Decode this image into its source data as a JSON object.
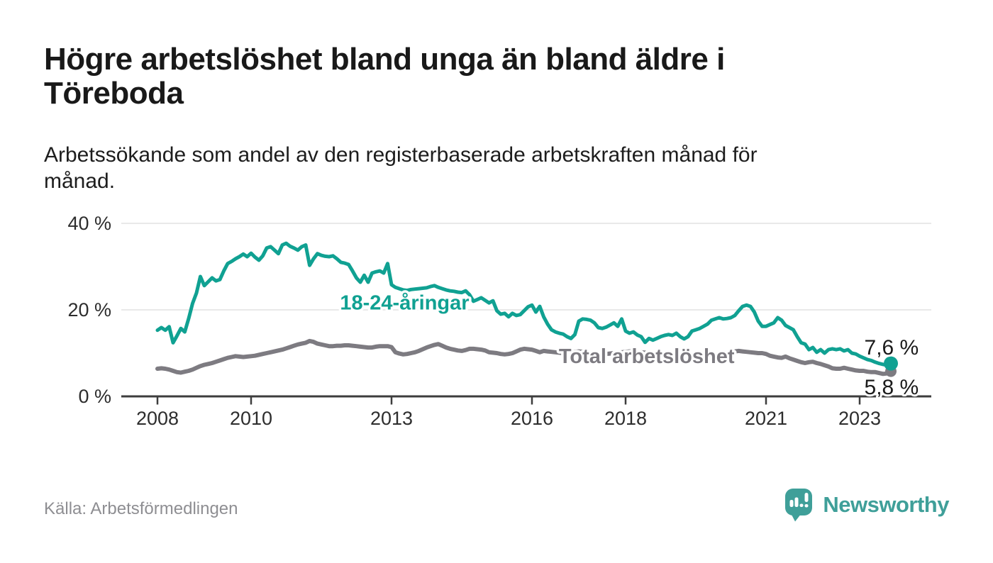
{
  "header": {
    "title": "Högre arbetslöshet bland unga än bland äldre i\nTöreboda",
    "subtitle": "Arbetssökande som andel av den registerbaserade arbetskraften månad för\nmånad."
  },
  "footer": {
    "source": "Källa: Arbetsförmedlingen",
    "brand": "Newsworthy"
  },
  "colors": {
    "young_series": "#10a192",
    "total_series": "#7d7b81",
    "gridline": "#e2e2e2",
    "axis": "#3d3d3d",
    "logo_teal": "#3f9f99"
  },
  "chart_data": {
    "type": "line",
    "title": "Högre arbetslöshet bland unga än bland äldre i Töreboda",
    "subtitle": "Arbetssökande som andel av den registerbaserade arbetskraften månad för månad.",
    "source_label": "Källa: Arbetsförmedlingen",
    "x_unit": "month",
    "start": "2008-01",
    "end": "2023-09",
    "ylim": [
      0,
      40
    ],
    "grid": "horizontal",
    "legend_position": "inline-labels",
    "y_ticks": [
      {
        "value": 40,
        "label": "40 %"
      },
      {
        "value": 20,
        "label": "20 %"
      },
      {
        "value": 0,
        "label": "0 %"
      }
    ],
    "x_ticks": [
      {
        "year": 2008,
        "label": "2008"
      },
      {
        "year": 2010,
        "label": "2010"
      },
      {
        "year": 2013,
        "label": "2013"
      },
      {
        "year": 2016,
        "label": "2016"
      },
      {
        "year": 2018,
        "label": "2018"
      },
      {
        "year": 2021,
        "label": "2021"
      },
      {
        "year": 2023,
        "label": "2023"
      }
    ],
    "series": [
      {
        "name": "Total arbetslöshet",
        "color": "#7d7b81",
        "line_width": 6,
        "start_year": 2008,
        "end_dot_radius": 8,
        "inline_label": {
          "text": "Total arbetslöshet",
          "year": 2018.45,
          "pct": 9.35
        },
        "end_label": {
          "text": "5,8 %",
          "year": 2023.68,
          "pct": 2.1
        },
        "values": [
          6.4,
          6.5,
          6.4,
          6.2,
          5.9,
          5.6,
          5.5,
          5.7,
          5.9,
          6.2,
          6.6,
          7.0,
          7.3,
          7.5,
          7.7,
          8.0,
          8.3,
          8.6,
          8.9,
          9.1,
          9.3,
          9.2,
          9.1,
          9.2,
          9.3,
          9.4,
          9.6,
          9.8,
          10.0,
          10.2,
          10.4,
          10.6,
          10.8,
          11.1,
          11.4,
          11.7,
          12.0,
          12.2,
          12.4,
          12.8,
          12.6,
          12.2,
          12.0,
          11.8,
          11.6,
          11.6,
          11.7,
          11.7,
          11.8,
          11.8,
          11.7,
          11.6,
          11.5,
          11.4,
          11.3,
          11.3,
          11.5,
          11.6,
          11.6,
          11.6,
          11.4,
          10.2,
          9.9,
          9.7,
          9.8,
          10.0,
          10.2,
          10.5,
          10.9,
          11.3,
          11.6,
          11.9,
          12.1,
          11.7,
          11.3,
          11.0,
          10.8,
          10.6,
          10.5,
          10.7,
          11.0,
          11.0,
          10.9,
          10.8,
          10.6,
          10.2,
          10.1,
          10.0,
          9.8,
          9.7,
          9.8,
          10.0,
          10.4,
          10.8,
          11.0,
          10.9,
          10.8,
          10.5,
          10.2,
          10.5,
          10.4,
          10.3,
          10.2,
          10.1,
          10.0,
          10.1,
          10.2,
          10.3,
          10.4,
          10.3,
          10.2,
          10.0,
          9.9,
          9.8,
          9.7,
          9.8,
          9.9,
          10.0,
          10.1,
          10.2,
          10.3,
          10.4,
          10.4,
          10.3,
          10.2,
          10.1,
          10.0,
          9.9,
          9.8,
          9.7,
          9.6,
          9.6,
          9.6,
          9.5,
          9.5,
          9.4,
          9.4,
          9.3,
          9.3,
          9.3,
          9.4,
          9.5,
          9.6,
          9.7,
          9.8,
          9.9,
          10.0,
          10.2,
          10.4,
          10.5,
          10.4,
          10.3,
          10.2,
          10.1,
          10.0,
          10.0,
          9.8,
          9.4,
          9.2,
          9.0,
          8.9,
          9.2,
          8.8,
          8.5,
          8.2,
          7.9,
          7.7,
          7.9,
          8.0,
          7.7,
          7.5,
          7.2,
          6.9,
          6.5,
          6.4,
          6.4,
          6.6,
          6.4,
          6.2,
          6.0,
          5.9,
          5.9,
          5.7,
          5.6,
          5.6,
          5.4,
          5.2,
          5.3,
          5.8
        ]
      },
      {
        "name": "18-24-åringar",
        "color": "#10a192",
        "line_width": 5,
        "start_year": 2008,
        "end_dot_radius": 10,
        "inline_label": {
          "text": "18-24-åringar",
          "year": 2013.28,
          "pct": 21.7
        },
        "end_label": {
          "text": "7,6 %",
          "year": 2023.68,
          "pct": 11.3
        },
        "values": [
          15.3,
          15.9,
          15.3,
          16.1,
          12.4,
          14.0,
          15.7,
          14.9,
          18.0,
          21.5,
          23.9,
          27.7,
          25.6,
          26.5,
          27.4,
          26.7,
          27.0,
          29.0,
          30.7,
          31.2,
          31.8,
          32.3,
          32.9,
          32.3,
          33.1,
          32.2,
          31.5,
          32.5,
          34.3,
          34.6,
          33.8,
          33.0,
          35.0,
          35.4,
          34.7,
          34.3,
          33.8,
          34.6,
          35.0,
          30.3,
          31.8,
          33.0,
          32.6,
          32.4,
          32.3,
          32.5,
          31.8,
          31.0,
          30.8,
          30.5,
          29.0,
          27.4,
          26.4,
          28.0,
          26.4,
          28.5,
          28.8,
          29.0,
          28.5,
          30.7,
          25.8,
          25.2,
          24.9,
          24.6,
          24.5,
          24.7,
          24.8,
          24.9,
          25.0,
          25.1,
          25.4,
          25.6,
          25.2,
          24.9,
          24.6,
          24.4,
          24.3,
          24.1,
          24.0,
          24.4,
          23.5,
          22.0,
          22.4,
          22.8,
          22.2,
          21.6,
          22.1,
          19.8,
          19.0,
          19.2,
          18.4,
          19.2,
          18.7,
          18.9,
          19.8,
          20.7,
          21.1,
          19.5,
          20.8,
          18.4,
          16.7,
          15.4,
          14.9,
          14.6,
          14.4,
          13.8,
          13.4,
          14.3,
          17.4,
          17.9,
          17.8,
          17.6,
          17.0,
          15.9,
          15.7,
          16.0,
          16.5,
          17.0,
          16.2,
          17.9,
          15.1,
          14.6,
          14.9,
          14.2,
          13.8,
          12.5,
          13.4,
          13.0,
          13.4,
          13.8,
          14.1,
          14.3,
          14.1,
          14.6,
          13.8,
          13.3,
          13.8,
          15.1,
          15.4,
          15.7,
          16.2,
          16.7,
          17.6,
          17.9,
          18.2,
          17.9,
          18.0,
          18.2,
          18.7,
          19.8,
          20.8,
          21.1,
          20.8,
          19.5,
          17.4,
          16.2,
          16.2,
          16.6,
          17.0,
          18.2,
          17.6,
          16.4,
          15.9,
          15.4,
          13.8,
          12.4,
          12.1,
          10.8,
          11.3,
          10.2,
          10.8,
          10.0,
          10.8,
          11.0,
          10.8,
          11.0,
          10.5,
          10.8,
          10.0,
          9.8,
          9.3,
          8.9,
          8.5,
          8.3,
          7.9,
          7.6,
          7.4,
          7.2,
          7.6
        ]
      }
    ]
  }
}
